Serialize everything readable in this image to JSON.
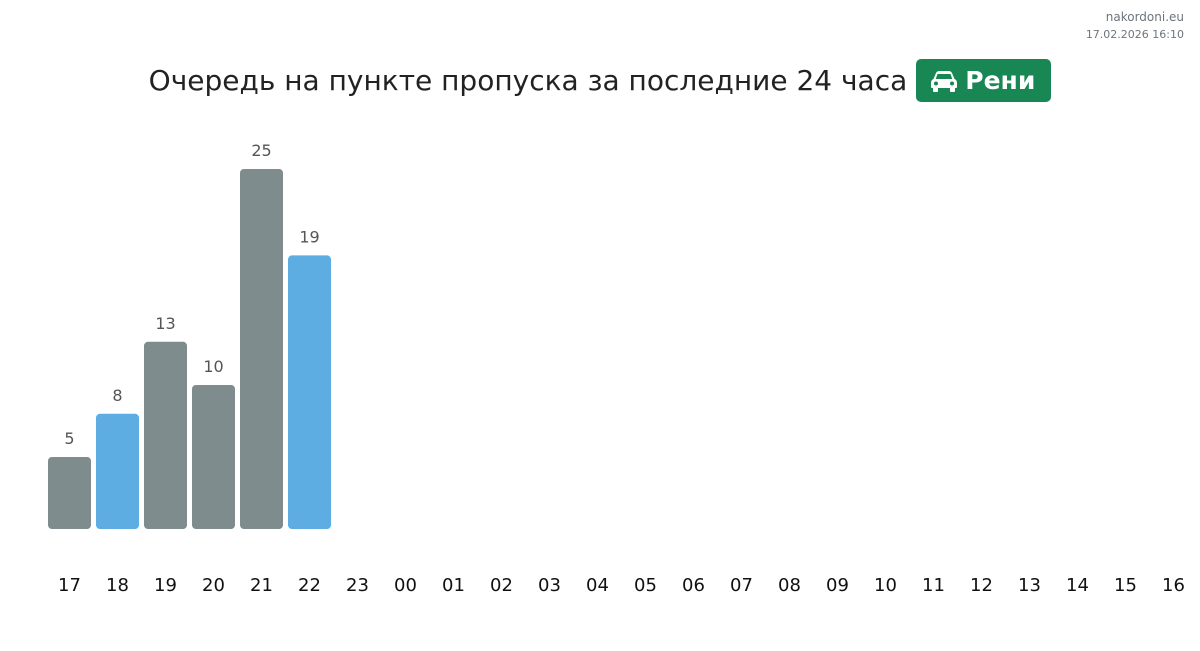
{
  "site": {
    "name": "nakordoni.eu",
    "timestamp": "17.02.2026 16:10"
  },
  "header": {
    "title": "Очередь на пункте пропуска за последние 24 часа",
    "badge_icon": "car-icon",
    "badge_label": "Рени",
    "badge_color": "#198754"
  },
  "colors": {
    "bar_gray": "#7f8c8d",
    "bar_blue": "#5dade2",
    "value_label": "#555555",
    "tick_label": "#111111"
  },
  "chart_data": {
    "type": "bar",
    "title": "Очередь на пункте пропуска за последние 24 часа",
    "xlabel": "",
    "ylabel": "",
    "grid": false,
    "categories": [
      "17",
      "18",
      "19",
      "20",
      "21",
      "22",
      "23",
      "00",
      "01",
      "02",
      "03",
      "04",
      "05",
      "06",
      "07",
      "08",
      "09",
      "10",
      "11",
      "12",
      "13",
      "14",
      "15",
      "16"
    ],
    "values": [
      5,
      8,
      13,
      10,
      25,
      19,
      null,
      null,
      null,
      null,
      null,
      null,
      null,
      null,
      null,
      null,
      null,
      null,
      null,
      null,
      null,
      null,
      null,
      null
    ],
    "bar_colors": [
      "gray",
      "blue",
      "gray",
      "gray",
      "gray",
      "blue"
    ],
    "ylim": [
      0,
      25
    ]
  }
}
